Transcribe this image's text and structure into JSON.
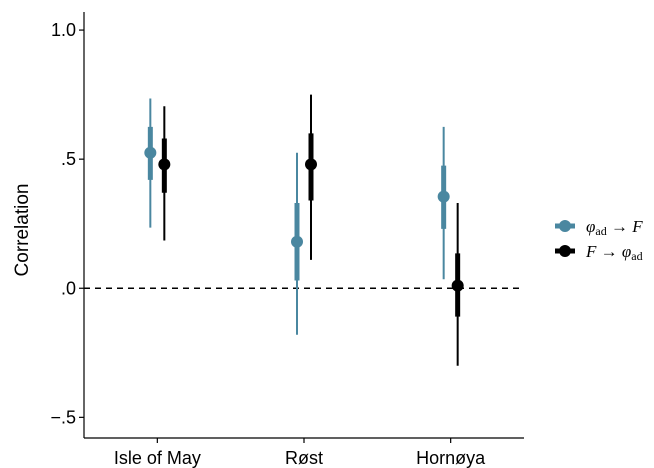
{
  "chart_data": {
    "type": "pointrange",
    "xlabel": "",
    "ylabel": "Correlation",
    "ylim": [
      -0.58,
      1.07
    ],
    "yticks": [
      {
        "value": -0.5,
        "label": "−.5"
      },
      {
        "value": 0.0,
        "label": ".0"
      },
      {
        "value": 0.5,
        "label": ".5"
      },
      {
        "value": 1.0,
        "label": "1.0"
      }
    ],
    "reference_line": {
      "y": 0.0,
      "style": "dashed"
    },
    "categories": [
      "Isle of May",
      "Røst",
      "Hornøya"
    ],
    "series": [
      {
        "name_main": "φ",
        "name_sub": "ad",
        "name_arrow": " → ",
        "name_tail": "F",
        "name_tail_sub": "",
        "color": "#4a87a0",
        "points": [
          {
            "mean": 0.525,
            "inner": [
              0.42,
              0.625
            ],
            "outer": [
              0.235,
              0.735
            ]
          },
          {
            "mean": 0.18,
            "inner": [
              0.03,
              0.33
            ],
            "outer": [
              -0.18,
              0.525
            ]
          },
          {
            "mean": 0.355,
            "inner": [
              0.23,
              0.475
            ],
            "outer": [
              0.035,
              0.625
            ]
          }
        ]
      },
      {
        "name_main": "F",
        "name_sub": "",
        "name_arrow": " → ",
        "name_tail": "φ",
        "name_tail_sub": "ad",
        "color": "#000000",
        "points": [
          {
            "mean": 0.48,
            "inner": [
              0.37,
              0.58
            ],
            "outer": [
              0.185,
              0.705
            ]
          },
          {
            "mean": 0.48,
            "inner": [
              0.34,
              0.6
            ],
            "outer": [
              0.11,
              0.75
            ]
          },
          {
            "mean": 0.01,
            "inner": [
              -0.11,
              0.135
            ],
            "outer": [
              -0.3,
              0.33
            ]
          }
        ]
      }
    ],
    "legend": {
      "position": "right"
    }
  }
}
